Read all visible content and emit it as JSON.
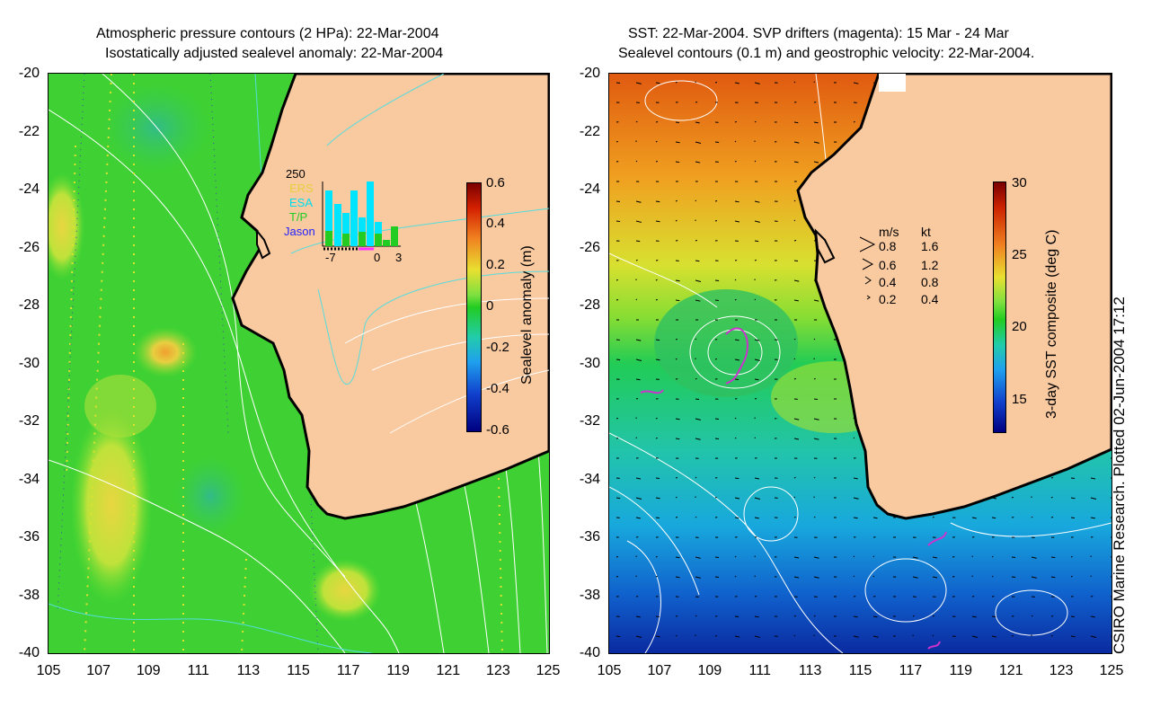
{
  "left_panel": {
    "title_line1": "Atmospheric pressure contours (2 HPa): 22-Mar-2004",
    "title_line2": "Isostatically adjusted sealevel anomaly: 22-Mar-2004",
    "colorbar_label": "Sealevel anomaly (m)",
    "colorbar_ticks": [
      "0.6",
      "0.4",
      "0.2",
      "0",
      "-0.2",
      "-0.4",
      "-0.6"
    ],
    "inset": {
      "ymax_label": "250",
      "legend": [
        "ERS",
        "ESA",
        "T/P",
        "Jason"
      ],
      "xticks": [
        "-7",
        "0",
        "3"
      ]
    }
  },
  "right_panel": {
    "title_line1": "SST: 22-Mar-2004. SVP drifters (magenta): 15 Mar - 24 Mar",
    "title_line2": "Sealevel contours (0.1 m) and geostrophic velocity: 22-Mar-2004.",
    "colorbar_label": "3-day SST composite (deg C)",
    "colorbar_ticks": [
      "30",
      "25",
      "20",
      "15"
    ],
    "velocity_legend": {
      "header_ms": "m/s",
      "header_kt": "kt",
      "rows": [
        {
          "ms": "0.8",
          "kt": "1.6"
        },
        {
          "ms": "0.6",
          "kt": "1.2"
        },
        {
          "ms": "0.4",
          "kt": "0.8"
        },
        {
          "ms": "0.2",
          "kt": "0.4"
        }
      ]
    }
  },
  "y_ticks": [
    "-20",
    "-22",
    "-24",
    "-26",
    "-28",
    "-30",
    "-32",
    "-34",
    "-36",
    "-38",
    "-40"
  ],
  "x_ticks": [
    "105",
    "107",
    "109",
    "111",
    "113",
    "115",
    "117",
    "119",
    "121",
    "123",
    "125"
  ],
  "credit": "CSIRO Marine Research. Plotted 02-Jun-2004 17:12",
  "colors": {
    "land": "#f9c9a0",
    "coast": "#000000",
    "sla_green": "#22cc22",
    "drifter": "#cc33cc"
  }
}
